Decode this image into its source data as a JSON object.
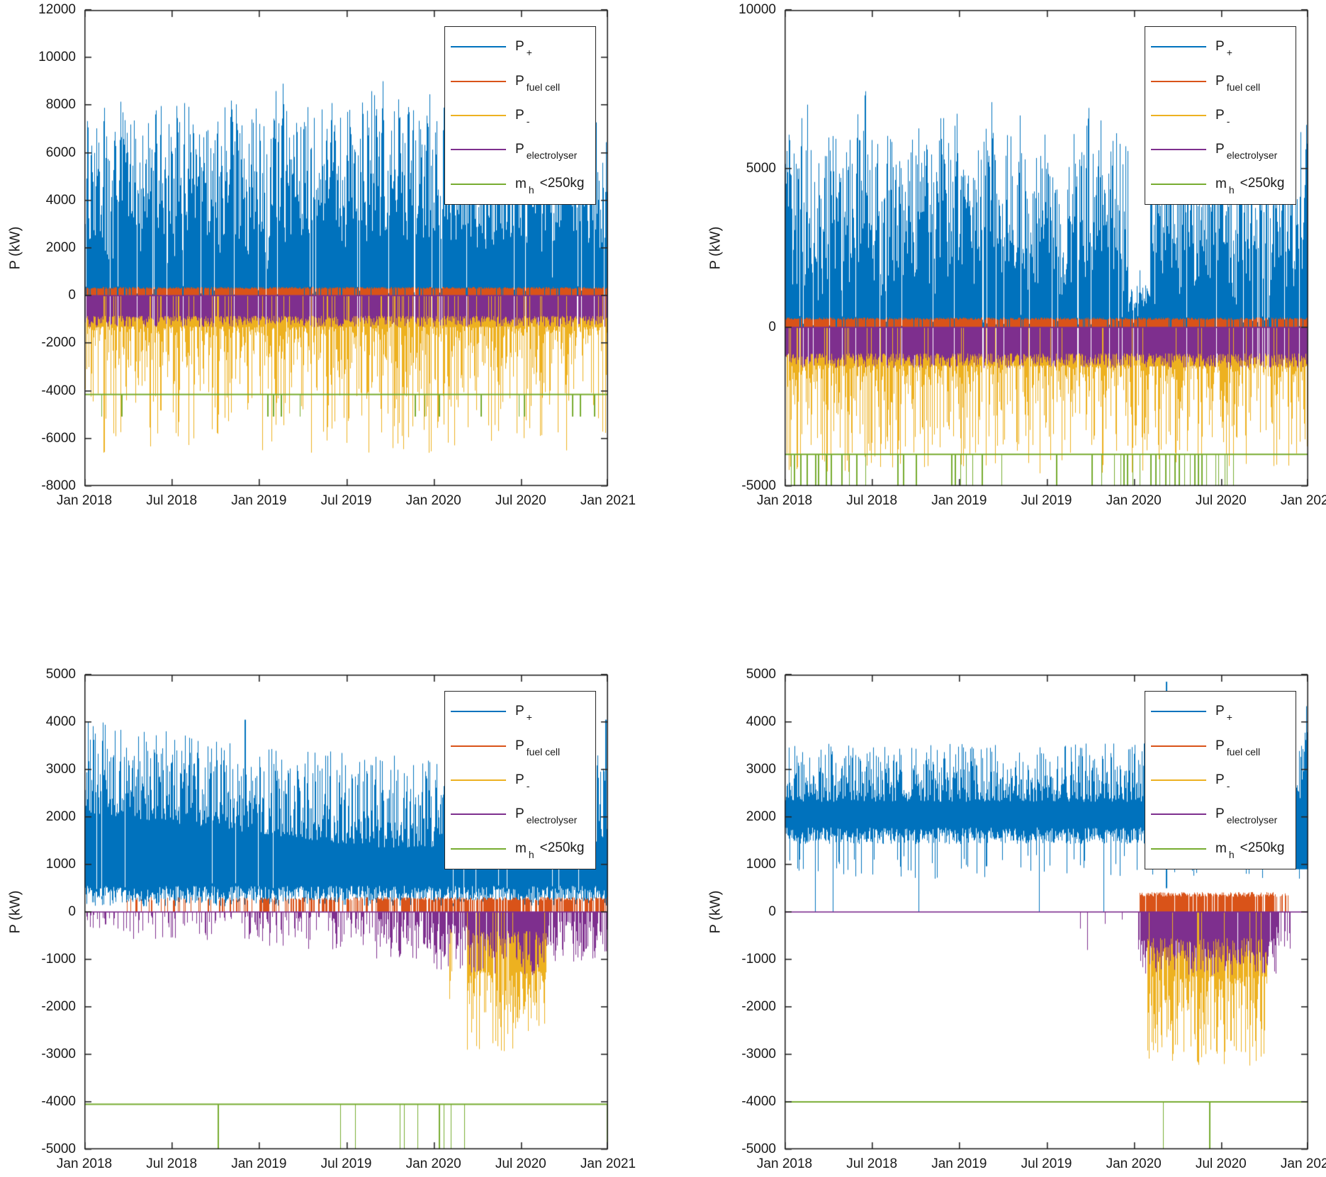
{
  "colors": {
    "p_plus_blue": "#0072BD",
    "fuel_cell_orange": "#D95319",
    "p_minus_yellow": "#EDB120",
    "electrolyser_purple": "#7E2F8E",
    "mh_green": "#77AC30",
    "axis": "#262626",
    "background": "#ffffff"
  },
  "x_tick_labels": [
    "Jan 2018",
    "Jul 2018",
    "Jan 2019",
    "Jul 2019",
    "Jan 2020",
    "Jul 2020",
    "Jan 2021"
  ],
  "legend_entries": [
    {
      "id": "p-plus",
      "main": "P",
      "sub": "+",
      "color": "#0072BD"
    },
    {
      "id": "p-fuel-cell",
      "main": "P",
      "sub": "fuel cell",
      "color": "#D95319"
    },
    {
      "id": "p-minus",
      "main": "P",
      "sub": "-",
      "color": "#EDB120"
    },
    {
      "id": "p-electrolyser",
      "main": "P",
      "sub": "electrolyser",
      "color": "#7E2F8E"
    },
    {
      "id": "m-h",
      "main": "m",
      "sub": "h",
      "suffix": "<250kg",
      "color": "#77AC30"
    }
  ],
  "chart_data": [
    {
      "id": "top-left",
      "type": "line",
      "ylabel": "P (kW)",
      "xlabel": "",
      "ylim": [
        -8000,
        12000
      ],
      "y_tick_values": [
        -8000,
        -6000,
        -4000,
        -2000,
        0,
        2000,
        4000,
        6000,
        8000,
        10000,
        12000
      ],
      "y_tick_labels": [
        "-8000",
        "-6000",
        "-4000",
        "-2000",
        "0",
        "2000",
        "4000",
        "6000",
        "8000",
        "10000",
        "12000"
      ],
      "x_months": 36,
      "series": {
        "p_plus": {
          "color": "#0072BD",
          "profile": "spiky",
          "min": 150,
          "max": 10200,
          "shape": 1.05,
          "quiet_p": 0.05
        },
        "p_fuel_cell": {
          "color": "#D95319",
          "band": [
            0,
            350
          ],
          "coverage": 0.92
        },
        "p_minus": {
          "color": "#EDB120",
          "base_depth": -1300,
          "max_depth": -6600,
          "spike_shape": 2.8,
          "coverage": 0.97
        },
        "p_electrolyser": {
          "color": "#7E2F8E",
          "zero_line": 0,
          "ranges": [
            [
              0,
              36,
              0.85,
              -850,
              -1320
            ]
          ]
        },
        "m_h": {
          "color": "#77AC30",
          "baseline": -4150,
          "pulse_level": -5080,
          "pulse_clusters": [
            [
              1,
              3.2,
              0.1
            ],
            [
              5.8,
              7,
              0.05
            ],
            [
              11.5,
              13.6,
              0.1
            ],
            [
              14.7,
              15.4,
              0.08
            ],
            [
              22.3,
              25.2,
              0.09
            ],
            [
              26,
              28.2,
              0.08
            ],
            [
              29.4,
              30.3,
              0.06
            ],
            [
              33.3,
              35.6,
              0.05
            ]
          ]
        }
      }
    },
    {
      "id": "top-right",
      "type": "line",
      "ylabel": "P (kW)",
      "xlabel": "",
      "ylim": [
        -5000,
        10000
      ],
      "y_tick_values": [
        -5000,
        0,
        5000,
        10000
      ],
      "y_tick_labels": [
        "-5000",
        "0",
        "5000",
        "10000"
      ],
      "x_months": 36,
      "series": {
        "p_plus": {
          "color": "#0072BD",
          "profile": "spiky",
          "min": 150,
          "max": 8300,
          "shape": 1.12,
          "quiet_p": 0.05,
          "lulls": [
            [
              23.6,
              25.1,
              0.25
            ],
            [
              18.9,
              19.4,
              0.5
            ]
          ],
          "end_spike": {
            "from": 35.6,
            "max": 8300
          }
        },
        "p_fuel_cell": {
          "color": "#D95319",
          "band": [
            0,
            300
          ],
          "coverage": 0.93
        },
        "p_minus": {
          "color": "#EDB120",
          "base_depth": -1200,
          "max_depth": -4600,
          "spike_shape": 2.6,
          "coverage": 0.97
        },
        "p_electrolyser": {
          "color": "#7E2F8E",
          "zero_line": 0,
          "ranges": [
            [
              0,
              36,
              0.95,
              -820,
              -1280
            ]
          ]
        },
        "m_h": {
          "color": "#77AC30",
          "baseline": -4000,
          "pulse_level": -5000,
          "pulse_clusters": [
            [
              0.1,
              8.4,
              0.12
            ],
            [
              8.4,
              10.9,
              0.015
            ],
            [
              10.9,
              14.2,
              0.12
            ],
            [
              14.2,
              22.8,
              0.05
            ],
            [
              22.8,
              24,
              0.15
            ],
            [
              24,
              30.6,
              0.42
            ],
            [
              30.6,
              36,
              0.04
            ]
          ]
        }
      }
    },
    {
      "id": "bottom-left",
      "type": "line",
      "ylabel": "P (kW)",
      "xlabel": "",
      "ylim": [
        -5000,
        5000
      ],
      "y_tick_values": [
        -5000,
        -4000,
        -3000,
        -2000,
        -1000,
        0,
        1000,
        2000,
        3000,
        4000,
        5000
      ],
      "y_tick_labels": [
        "-5000",
        "-4000",
        "-3000",
        "-2000",
        "-1000",
        "0",
        "1000",
        "2000",
        "3000",
        "4000",
        "5000"
      ],
      "x_months": 36,
      "series": {
        "p_plus": {
          "color": "#0072BD",
          "profile": "band",
          "trend": [
            [
              0,
              20,
              2450,
              1700
            ],
            [
              20,
              36,
              1700,
              1780
            ]
          ],
          "jitter": [
            -350,
            1600,
            1.7
          ],
          "cap": 4050,
          "bottom": [
            120,
            550
          ],
          "quiet_p": 0.02,
          "peaks": [
            [
              11,
              4050
            ],
            [
              34.9,
              3900
            ],
            [
              35.8,
              4050
            ]
          ]
        },
        "p_fuel_cell": {
          "color": "#D95319",
          "band": [
            0,
            300
          ],
          "ranges": [
            [
              2.5,
              12,
              0.25
            ],
            [
              12,
              20,
              0.5
            ],
            [
              20,
              36,
              0.78
            ]
          ]
        },
        "p_minus": {
          "color": "#EDB120",
          "base_depth": -1250,
          "max_depth": -2950,
          "spike_shape": 2.0,
          "ranges": [
            [
              24.8,
              25.4,
              0.25
            ],
            [
              26.3,
              31.8,
              0.85
            ]
          ]
        },
        "p_electrolyser": {
          "color": "#7E2F8E",
          "zero_line": 0,
          "ranges": [
            [
              0,
              2.5,
              0.2,
              -60,
              -350
            ],
            [
              2.5,
              12,
              0.3,
              -80,
              -600
            ],
            [
              12,
              20,
              0.45,
              -100,
              -800
            ],
            [
              20,
              24,
              0.65,
              -150,
              -1000
            ],
            [
              24,
              26.5,
              0.8,
              -250,
              -1250
            ],
            [
              26.5,
              31.5,
              0.92,
              -400,
              -1350
            ],
            [
              31.5,
              36,
              0.8,
              -200,
              -1100
            ]
          ]
        },
        "m_h": {
          "color": "#77AC30",
          "baseline": -4050,
          "pulse_level": -5000,
          "pulses": [
            [
              9.15,
              2
            ],
            [
              17.6,
              1
            ],
            [
              18.6,
              1
            ],
            [
              21.7,
              1
            ],
            [
              21.95,
              1
            ],
            [
              22.9,
              1
            ],
            [
              24.35,
              2
            ],
            [
              24.7,
              1
            ],
            [
              25.2,
              1
            ],
            [
              26.1,
              1
            ],
            [
              35.9,
              2
            ]
          ]
        }
      }
    },
    {
      "id": "bottom-right",
      "type": "line",
      "ylabel": "P (kW)",
      "xlabel": "",
      "ylim": [
        -5000,
        5000
      ],
      "y_tick_values": [
        -5000,
        -4000,
        -3000,
        -2000,
        -1000,
        0,
        1000,
        2000,
        3000,
        4000,
        5000
      ],
      "y_tick_labels": [
        "-5000",
        "-4000",
        "-3000",
        "-2000",
        "-1000",
        "0",
        "1000",
        "2000",
        "3000",
        "4000",
        "5000"
      ],
      "x_months": 36,
      "series": {
        "p_plus": {
          "color": "#0072BD",
          "profile": "band",
          "trend": [
            [
              0,
              36,
              2600,
              2600
            ]
          ],
          "jitter": [
            -280,
            950,
            1.5
          ],
          "cap": 3680,
          "bottom": [
            1430,
            1780
          ],
          "low_bottom_p": 0.1,
          "low_bottom": [
            700,
            1200
          ],
          "quiet_p": 0,
          "dips": [
            2.1,
            3.3,
            9.2,
            17.5,
            21.9
          ],
          "end_spike": {
            "from": 35.15,
            "max": 4900
          },
          "peaks": [
            [
              26.2,
              4850
            ]
          ]
        },
        "p_fuel_cell": {
          "color": "#D95319",
          "band": [
            0,
            400
          ],
          "ranges": [
            [
              24.4,
              33.6,
              0.9
            ],
            [
              33.6,
              34.6,
              0.4
            ]
          ]
        },
        "p_minus": {
          "color": "#EDB120",
          "base_depth": -1350,
          "max_depth": -3250,
          "spike_shape": 1.8,
          "ranges": [
            [
              24.9,
              33.2,
              0.88
            ]
          ]
        },
        "p_electrolyser": {
          "color": "#7E2F8E",
          "zero_line": 0,
          "ranges": [
            [
              24.3,
              33.8,
              0.93,
              -550,
              -1330
            ],
            [
              33.8,
              34.8,
              0.5,
              -250,
              -900
            ]
          ],
          "isolated": [
            [
              20.3,
              -350
            ],
            [
              20.8,
              -800
            ],
            [
              22.0,
              -250
            ],
            [
              23.2,
              -160
            ]
          ]
        },
        "m_h": {
          "color": "#77AC30",
          "baseline": -4000,
          "pulse_level": -5000,
          "pulses": [
            [
              26.0,
              1
            ],
            [
              29.2,
              2
            ]
          ]
        }
      }
    }
  ]
}
